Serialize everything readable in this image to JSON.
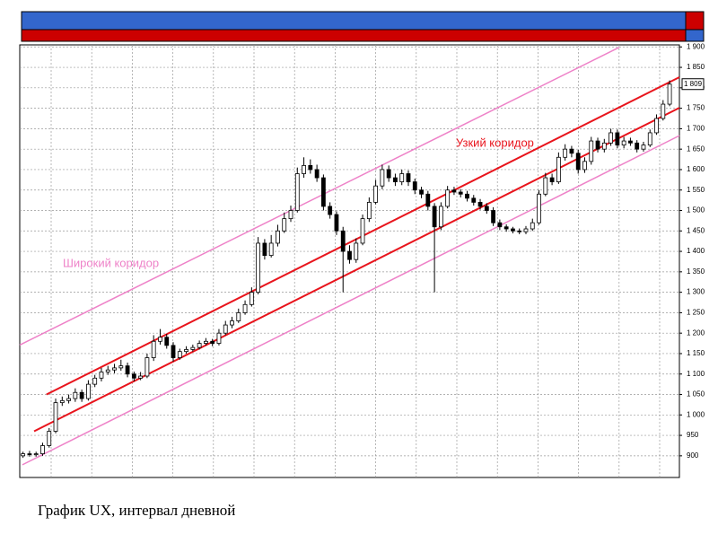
{
  "chart_data": {
    "type": "candlestick",
    "caption": "График UX,  интервал дневной",
    "annotations": [
      {
        "text": "Узкий коридор",
        "color": "#e8141c"
      },
      {
        "text": "Широкий коридор",
        "color": "#ee82c8"
      }
    ],
    "last_price": {
      "value": 1809,
      "label": "1 809"
    },
    "xlim": [
      -0.5,
      100.5
    ],
    "ylim": [
      847,
      1905
    ],
    "yticks": [
      900,
      950,
      {
        "value": 1000,
        "label": "1 000"
      },
      {
        "value": 1050,
        "label": "1 050"
      },
      {
        "value": 1100,
        "label": "1 100"
      },
      {
        "value": 1150,
        "label": "1 150"
      },
      {
        "value": 1200,
        "label": "1 200"
      },
      {
        "value": 1250,
        "label": "1 250"
      },
      {
        "value": 1300,
        "label": "1 300"
      },
      {
        "value": 1350,
        "label": "1 350"
      },
      {
        "value": 1400,
        "label": "1 400"
      },
      {
        "value": 1450,
        "label": "1 450"
      },
      {
        "value": 1500,
        "label": "1 500"
      },
      {
        "value": 1550,
        "label": "1 550"
      },
      {
        "value": 1600,
        "label": "1 600"
      },
      {
        "value": 1650,
        "label": "1 650"
      },
      {
        "value": 1700,
        "label": "1 700"
      },
      {
        "value": 1750,
        "label": "1 750"
      },
      {
        "value": 1800,
        "label": "1 800"
      },
      {
        "value": 1850,
        "label": "1 850"
      },
      {
        "value": 1900,
        "label": "1 900"
      }
    ],
    "grid": true,
    "up_color": "#ffffff",
    "down_color": "#000000",
    "open": [
      900,
      905,
      903,
      905,
      925,
      960,
      1030,
      1035,
      1040,
      1055,
      1040,
      1075,
      1090,
      1105,
      1110,
      1115,
      1120,
      1100,
      1090,
      1095,
      1140,
      1180,
      1190,
      1170,
      1140,
      1155,
      1160,
      1165,
      1175,
      1180,
      1175,
      1200,
      1220,
      1230,
      1250,
      1270,
      1300,
      1420,
      1390,
      1420,
      1450,
      1480,
      1500,
      1590,
      1610,
      1600,
      1580,
      1510,
      1490,
      1450,
      1400,
      1380,
      1420,
      1480,
      1520,
      1560,
      1600,
      1580,
      1570,
      1590,
      1570,
      1550,
      1540,
      1510,
      1460,
      1510,
      1550,
      1545,
      1540,
      1530,
      1520,
      1510,
      1500,
      1470,
      1460,
      1455,
      1450,
      1448,
      1455,
      1470,
      1540,
      1580,
      1570,
      1630,
      1650,
      1640,
      1600,
      1620,
      1670,
      1650,
      1665,
      1690,
      1660,
      1670,
      1665,
      1650,
      1660,
      1690,
      1725,
      1760
    ],
    "high": [
      910,
      912,
      910,
      932,
      968,
      1040,
      1045,
      1050,
      1065,
      1062,
      1085,
      1098,
      1115,
      1120,
      1125,
      1135,
      1128,
      1106,
      1105,
      1150,
      1195,
      1210,
      1198,
      1178,
      1162,
      1168,
      1172,
      1182,
      1188,
      1186,
      1210,
      1230,
      1240,
      1260,
      1280,
      1312,
      1435,
      1430,
      1440,
      1465,
      1495,
      1512,
      1605,
      1630,
      1625,
      1612,
      1588,
      1520,
      1498,
      1460,
      1415,
      1432,
      1490,
      1532,
      1575,
      1612,
      1610,
      1590,
      1600,
      1598,
      1578,
      1558,
      1548,
      1518,
      1520,
      1560,
      1558,
      1552,
      1548,
      1538,
      1528,
      1518,
      1508,
      1478,
      1466,
      1460,
      1456,
      1462,
      1480,
      1550,
      1592,
      1590,
      1642,
      1662,
      1658,
      1648,
      1630,
      1680,
      1678,
      1675,
      1700,
      1698,
      1680,
      1678,
      1672,
      1668,
      1698,
      1735,
      1770,
      1818
    ],
    "low": [
      895,
      898,
      898,
      900,
      920,
      955,
      1022,
      1028,
      1032,
      1032,
      1035,
      1068,
      1082,
      1098,
      1102,
      1108,
      1092,
      1082,
      1085,
      1090,
      1132,
      1172,
      1162,
      1130,
      1135,
      1150,
      1155,
      1160,
      1170,
      1168,
      1170,
      1195,
      1212,
      1225,
      1245,
      1265,
      1295,
      1380,
      1385,
      1412,
      1445,
      1472,
      1495,
      1580,
      1590,
      1570,
      1500,
      1480,
      1440,
      1300,
      1370,
      1372,
      1415,
      1472,
      1515,
      1552,
      1570,
      1560,
      1562,
      1560,
      1540,
      1530,
      1500,
      1300,
      1452,
      1505,
      1538,
      1532,
      1522,
      1512,
      1502,
      1492,
      1462,
      1452,
      1448,
      1444,
      1442,
      1442,
      1450,
      1465,
      1535,
      1562,
      1565,
      1622,
      1630,
      1590,
      1592,
      1612,
      1642,
      1642,
      1658,
      1652,
      1652,
      1658,
      1642,
      1644,
      1655,
      1685,
      1720,
      1755
    ],
    "close": [
      905,
      903,
      905,
      925,
      960,
      1030,
      1035,
      1040,
      1055,
      1040,
      1075,
      1090,
      1105,
      1110,
      1115,
      1120,
      1100,
      1090,
      1095,
      1140,
      1180,
      1190,
      1170,
      1140,
      1155,
      1160,
      1165,
      1175,
      1180,
      1175,
      1200,
      1220,
      1230,
      1250,
      1270,
      1300,
      1420,
      1390,
      1420,
      1450,
      1480,
      1500,
      1590,
      1610,
      1600,
      1580,
      1510,
      1490,
      1450,
      1400,
      1380,
      1420,
      1480,
      1520,
      1560,
      1600,
      1580,
      1570,
      1590,
      1570,
      1550,
      1540,
      1510,
      1460,
      1510,
      1550,
      1545,
      1540,
      1530,
      1520,
      1510,
      1500,
      1470,
      1460,
      1455,
      1450,
      1448,
      1455,
      1470,
      1540,
      1580,
      1570,
      1630,
      1650,
      1640,
      1600,
      1620,
      1670,
      1650,
      1665,
      1690,
      1660,
      1670,
      1665,
      1650,
      1660,
      1690,
      1725,
      1760,
      1809
    ],
    "lines": [
      {
        "color": "#e8141c",
        "x": [
          3.6,
          100.5
        ],
        "values": [
          1050,
          1826
        ]
      },
      {
        "color": "#e8141c",
        "x": [
          1.7,
          100.5
        ],
        "values": [
          960,
          1751
        ]
      },
      {
        "color": "#ee82c8",
        "x": [
          -0.5,
          91.3
        ],
        "values": [
          1171,
          1899
        ]
      },
      {
        "color": "#ee82c8",
        "x": [
          -0.1,
          100.5
        ],
        "values": [
          878,
          1683
        ]
      }
    ]
  }
}
